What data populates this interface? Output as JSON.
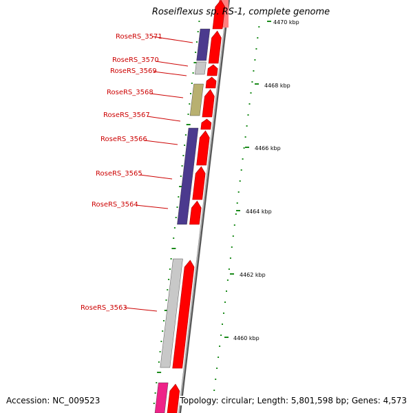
{
  "title": "Roseiflexus sp. RS-1, complete genome",
  "accession_text": "Accession: NC_009523",
  "summary_text": "Topology: circular; Length: 5,801,598 bp; Genes: 4,573",
  "colors": {
    "gene_red": "#ff0000",
    "label_red": "#cc0000",
    "purple": "#4b3a8e",
    "olive": "#b8b070",
    "gray": "#c8c8c8",
    "magenta": "#ee2288",
    "tick_green": "#1a8a1a",
    "backbone": "#888888"
  },
  "ticks": [
    {
      "label": "4470 kbp"
    },
    {
      "label": "4468 kbp"
    },
    {
      "label": "4466 kbp"
    },
    {
      "label": "4464 kbp"
    },
    {
      "label": "4462 kbp"
    },
    {
      "label": "4460 kbp"
    }
  ],
  "gene_labels": [
    {
      "name": "RoseRS_3571"
    },
    {
      "name": "RoseRS_3570"
    },
    {
      "name": "RoseRS_3569"
    },
    {
      "name": "RoseRS_3568"
    },
    {
      "name": "RoseRS_3567"
    },
    {
      "name": "RoseRS_3566"
    },
    {
      "name": "RoseRS_3565"
    },
    {
      "name": "RoseRS_3564"
    },
    {
      "name": "RoseRS_3563"
    }
  ]
}
